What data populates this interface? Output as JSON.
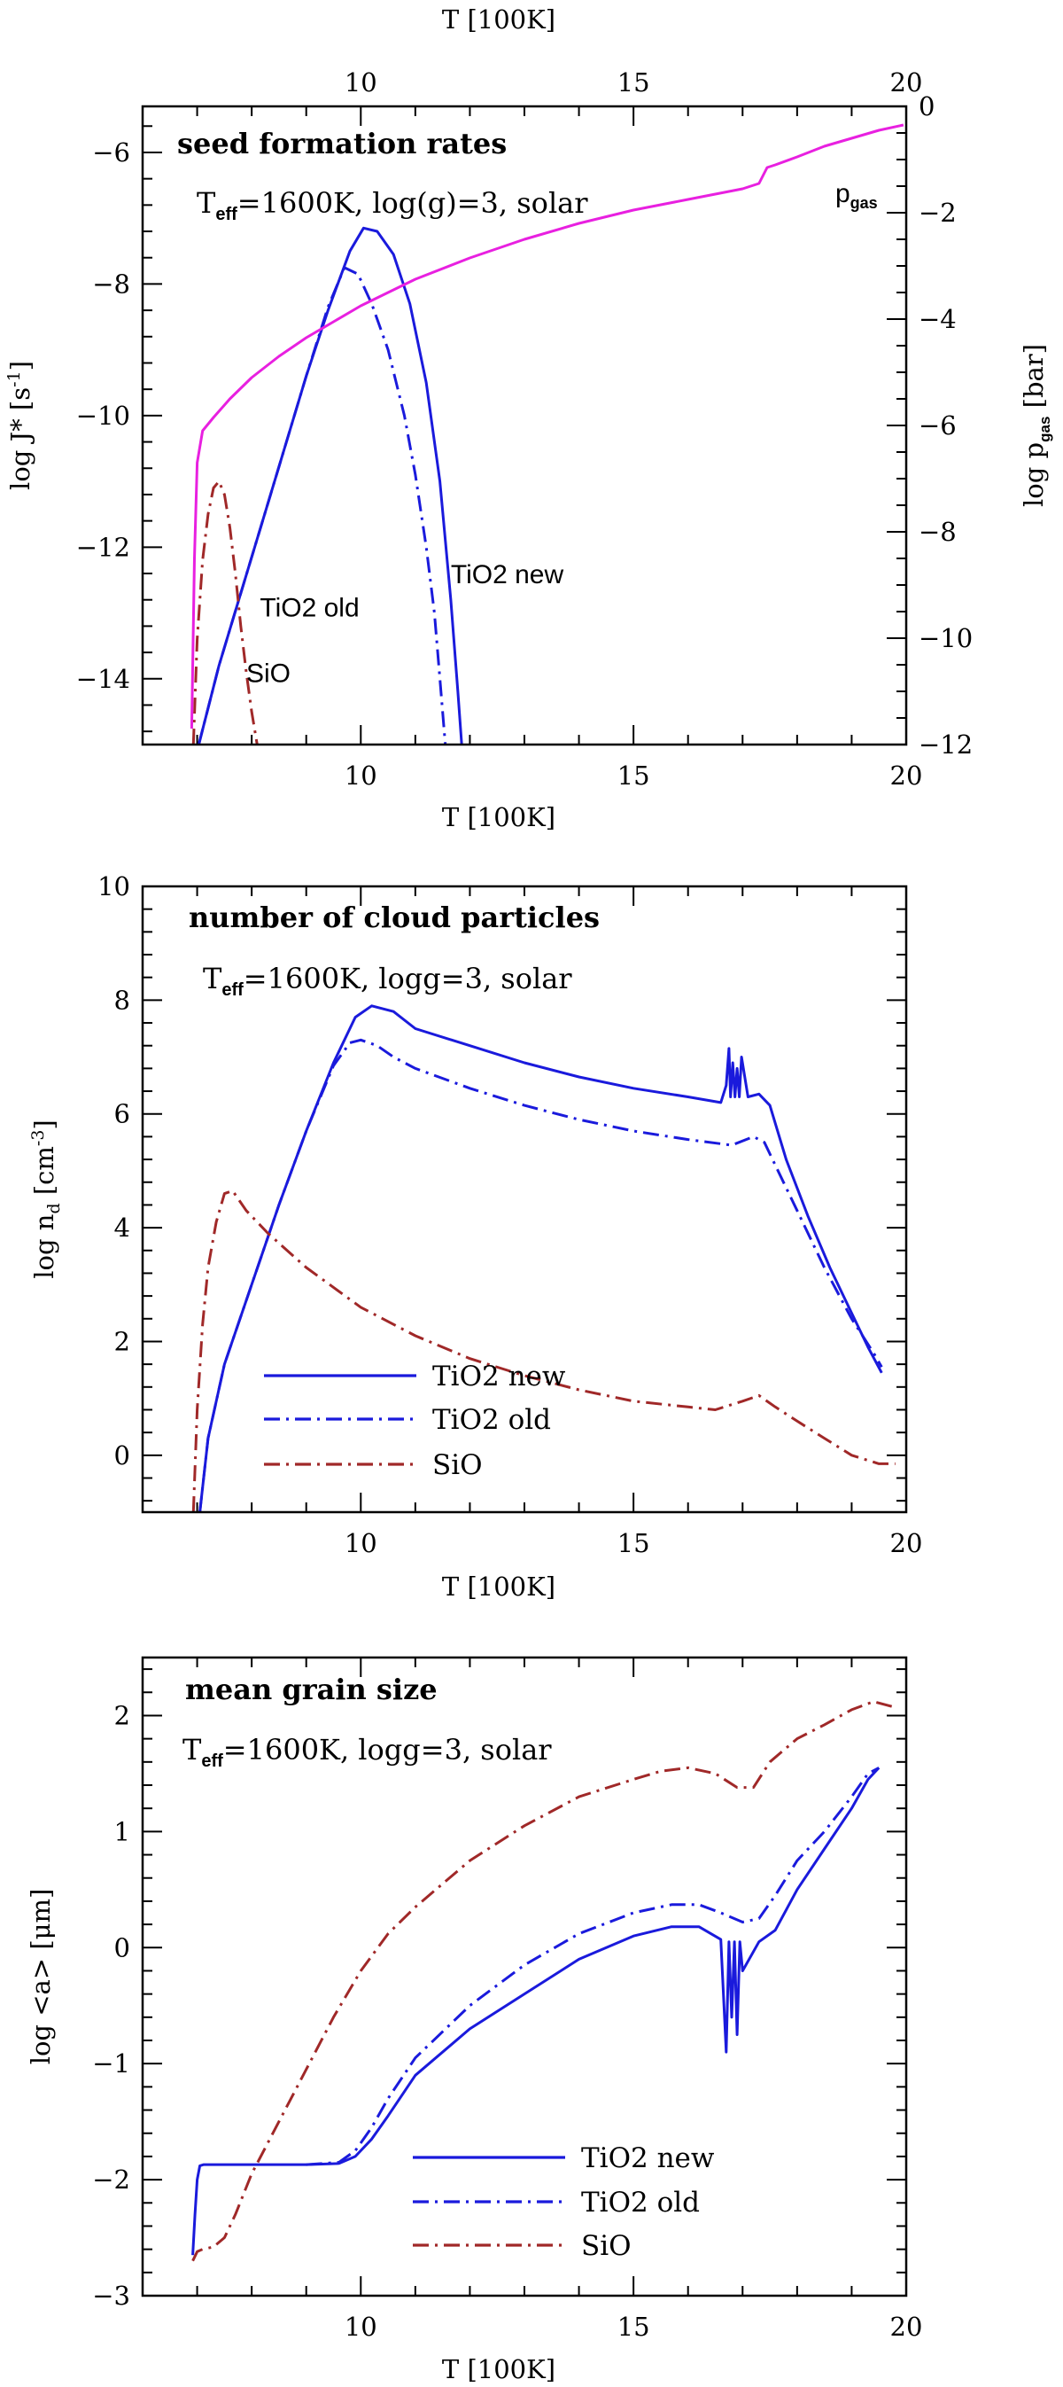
{
  "chart_data": [
    {
      "type": "line",
      "id": "seed",
      "title": "seed formation rates",
      "subtitle_main": "T",
      "subtitle_sub": "eff",
      "subtitle_rest": "=1600K, log(g)=3, solar",
      "xlabel": "T [100K]",
      "xlabel_top": "T [100K]",
      "ylabel_main": "log J* [s",
      "ylabel_sup": "-1",
      "ylabel_end": "]",
      "y2label_main": "log p",
      "y2label_sub": "gas",
      "y2label_end": " [bar]",
      "xlim": [
        6,
        20
      ],
      "ylim": [
        -15,
        -5.3
      ],
      "y2lim": [
        -12,
        0
      ],
      "xticks": [
        10,
        15,
        20
      ],
      "yticks": [
        -14,
        -12,
        -10,
        -8,
        -6
      ],
      "y2ticks": [
        -12,
        -10,
        -8,
        -6,
        -4,
        -2,
        0
      ],
      "series": [
        {
          "name": "TiO2 new",
          "color": "#1a1adc",
          "dash": "solid",
          "axis": "left",
          "x": [
            7.03,
            7.4,
            7.8,
            8.2,
            8.6,
            9.0,
            9.4,
            9.8,
            10.05,
            10.3,
            10.6,
            10.9,
            11.2,
            11.45,
            11.65,
            11.78,
            11.85
          ],
          "y": [
            -15,
            -13.8,
            -12.7,
            -11.6,
            -10.5,
            -9.4,
            -8.4,
            -7.5,
            -7.15,
            -7.2,
            -7.55,
            -8.3,
            -9.5,
            -11.0,
            -12.8,
            -14.2,
            -15
          ]
        },
        {
          "name": "TiO2 old",
          "color": "#1a1adc",
          "dash": "dashdot",
          "axis": "left",
          "x": [
            7.03,
            7.4,
            7.8,
            8.2,
            8.6,
            9.0,
            9.4,
            9.7,
            9.95,
            10.2,
            10.5,
            10.8,
            11.0,
            11.2,
            11.35,
            11.45,
            11.55
          ],
          "y": [
            -15,
            -13.8,
            -12.7,
            -11.6,
            -10.5,
            -9.4,
            -8.35,
            -7.75,
            -7.85,
            -8.3,
            -9.0,
            -10.0,
            -10.9,
            -12.0,
            -13.0,
            -14.0,
            -15
          ]
        },
        {
          "name": "SiO",
          "color": "#a02828",
          "dash": "dashdot",
          "axis": "left",
          "x": [
            6.93,
            7.0,
            7.1,
            7.2,
            7.3,
            7.4,
            7.5,
            7.6,
            7.7,
            7.8,
            7.9,
            8.0,
            8.1
          ],
          "y": [
            -15,
            -13.4,
            -12.2,
            -11.5,
            -11.1,
            -11.0,
            -11.2,
            -11.7,
            -12.4,
            -13.2,
            -13.9,
            -14.5,
            -15
          ]
        },
        {
          "name": "p_gas",
          "color": "#e820e0",
          "dash": "solid",
          "axis": "right",
          "x": [
            6.9,
            6.95,
            7.0,
            7.1,
            7.3,
            7.6,
            8.0,
            8.5,
            9.0,
            9.5,
            10.0,
            10.5,
            11.0,
            12.0,
            13.0,
            14.0,
            15.0,
            16.0,
            17.0,
            17.3,
            17.45,
            17.6,
            18.0,
            18.5,
            19.0,
            19.5,
            19.95
          ],
          "y": [
            -11.7,
            -8.5,
            -6.7,
            -6.1,
            -5.85,
            -5.5,
            -5.1,
            -4.7,
            -4.35,
            -4.05,
            -3.75,
            -3.5,
            -3.25,
            -2.85,
            -2.5,
            -2.2,
            -1.95,
            -1.75,
            -1.55,
            -1.45,
            -1.15,
            -1.1,
            -0.95,
            -0.75,
            -0.6,
            -0.45,
            -0.35
          ]
        }
      ],
      "annotations": [
        {
          "text": "TiO2 new",
          "x": 11.65,
          "y": -12.55
        },
        {
          "text": "TiO2 old",
          "x": 8.15,
          "y": -13.05
        },
        {
          "text": "SiO",
          "x": 7.9,
          "y": -14.05
        },
        {
          "text_main": "p",
          "text_sub": "gas",
          "x": 18.7,
          "y": -6.1
        }
      ]
    },
    {
      "type": "line",
      "id": "nd",
      "title": "number of cloud particles",
      "subtitle_main": "T",
      "subtitle_sub": "eff",
      "subtitle_rest": "=1600K, logg=3, solar",
      "xlabel": "T [100K]",
      "ylabel_main": "log n",
      "ylabel_sub": "d",
      "ylabel_mid": " [cm",
      "ylabel_sup": "-3",
      "ylabel_end": "]",
      "xlim": [
        6,
        20
      ],
      "ylim": [
        -1,
        10
      ],
      "xticks": [
        10,
        15,
        20
      ],
      "yticks": [
        0,
        2,
        4,
        6,
        8,
        10
      ],
      "legend": [
        "TiO2 new",
        "TiO2 old",
        "SiO"
      ],
      "series": [
        {
          "name": "TiO2 new",
          "color": "#1a1adc",
          "dash": "solid",
          "x": [
            7.05,
            7.2,
            7.5,
            8.0,
            8.5,
            9.0,
            9.5,
            9.9,
            10.2,
            10.6,
            11.0,
            12.0,
            13.0,
            14.0,
            15.0,
            16.0,
            16.6,
            16.7,
            16.75,
            16.78,
            16.82,
            16.86,
            16.9,
            16.94,
            16.98,
            17.1,
            17.3,
            17.5,
            17.8,
            18.2,
            18.6,
            19.0,
            19.3,
            19.55
          ],
          "y": [
            -1,
            0.3,
            1.6,
            3.0,
            4.4,
            5.7,
            6.9,
            7.7,
            7.9,
            7.8,
            7.5,
            7.2,
            6.9,
            6.65,
            6.45,
            6.3,
            6.2,
            6.5,
            7.15,
            6.3,
            6.9,
            6.3,
            6.8,
            6.3,
            7.0,
            6.3,
            6.35,
            6.15,
            5.2,
            4.2,
            3.3,
            2.5,
            1.9,
            1.45
          ]
        },
        {
          "name": "TiO2 old",
          "color": "#1a1adc",
          "dash": "dashdot",
          "x": [
            7.05,
            7.2,
            7.5,
            8.0,
            8.5,
            9.0,
            9.5,
            9.8,
            10.0,
            10.3,
            10.6,
            11.0,
            12.0,
            13.0,
            14.0,
            15.0,
            16.0,
            16.8,
            17.2,
            17.4,
            17.6,
            18.0,
            18.5,
            19.0,
            19.4,
            19.55
          ],
          "y": [
            -1,
            0.3,
            1.6,
            3.0,
            4.4,
            5.7,
            6.85,
            7.25,
            7.3,
            7.2,
            7.0,
            6.8,
            6.45,
            6.15,
            5.9,
            5.7,
            5.55,
            5.45,
            5.6,
            5.5,
            5.1,
            4.3,
            3.3,
            2.4,
            1.8,
            1.55
          ]
        },
        {
          "name": "SiO",
          "color": "#a02828",
          "dash": "dashdot",
          "x": [
            6.93,
            7.0,
            7.1,
            7.2,
            7.35,
            7.5,
            7.65,
            7.9,
            8.3,
            9.0,
            10.0,
            11.0,
            12.0,
            13.0,
            14.0,
            15.0,
            16.0,
            16.5,
            17.0,
            17.3,
            17.6,
            18.0,
            18.5,
            19.0,
            19.5,
            19.8
          ],
          "y": [
            -1,
            0.8,
            2.3,
            3.3,
            4.1,
            4.6,
            4.65,
            4.3,
            3.9,
            3.3,
            2.6,
            2.1,
            1.7,
            1.4,
            1.15,
            0.95,
            0.85,
            0.8,
            0.95,
            1.05,
            0.85,
            0.6,
            0.3,
            0.0,
            -0.15,
            -0.15
          ]
        }
      ]
    },
    {
      "type": "line",
      "id": "grain",
      "title": "mean grain size",
      "subtitle_main": "T",
      "subtitle_sub": "eff",
      "subtitle_rest": "=1600K, logg=3, solar",
      "xlabel": "T [100K]",
      "ylabel": "log <a> [μm]",
      "xlim": [
        6,
        20
      ],
      "ylim": [
        -3,
        2.5
      ],
      "xticks": [
        10,
        15,
        20
      ],
      "yticks": [
        -3,
        -2,
        -1,
        0,
        1,
        2
      ],
      "legend": [
        "TiO2 new",
        "TiO2 old",
        "SiO"
      ],
      "series": [
        {
          "name": "TiO2 new",
          "color": "#1a1adc",
          "dash": "solid",
          "x": [
            6.92,
            6.96,
            7.0,
            7.05,
            7.12,
            7.2,
            8.0,
            9.0,
            9.6,
            9.9,
            10.2,
            10.5,
            11.0,
            12.0,
            13.0,
            14.0,
            15.0,
            15.7,
            16.2,
            16.6,
            16.7,
            16.75,
            16.8,
            16.85,
            16.9,
            16.95,
            17.0,
            17.3,
            17.6,
            18.0,
            18.5,
            19.0,
            19.3,
            19.5
          ],
          "y": [
            -2.65,
            -2.3,
            -2.0,
            -1.88,
            -1.87,
            -1.87,
            -1.87,
            -1.87,
            -1.86,
            -1.8,
            -1.65,
            -1.45,
            -1.1,
            -0.7,
            -0.4,
            -0.1,
            0.1,
            0.18,
            0.18,
            0.07,
            -0.9,
            0.05,
            -0.6,
            0.05,
            -0.75,
            0.05,
            -0.2,
            0.05,
            0.15,
            0.5,
            0.85,
            1.2,
            1.45,
            1.55
          ]
        },
        {
          "name": "TiO2 old",
          "color": "#1a1adc",
          "dash": "dashdot",
          "x": [
            9.0,
            9.6,
            9.9,
            10.2,
            10.5,
            11.0,
            12.0,
            13.0,
            14.0,
            15.0,
            15.7,
            16.2,
            16.6,
            17.0,
            17.3,
            17.6,
            18.0,
            18.5,
            19.0,
            19.3,
            19.5
          ],
          "y": [
            -1.87,
            -1.85,
            -1.75,
            -1.55,
            -1.3,
            -0.95,
            -0.5,
            -0.15,
            0.12,
            0.3,
            0.37,
            0.37,
            0.3,
            0.22,
            0.25,
            0.45,
            0.75,
            1.0,
            1.3,
            1.5,
            1.55
          ]
        },
        {
          "name": "SiO",
          "color": "#a02828",
          "dash": "dashdot",
          "x": [
            6.92,
            7.0,
            7.1,
            7.3,
            7.5,
            7.7,
            8.0,
            8.5,
            9.0,
            9.5,
            10.0,
            10.5,
            11.0,
            12.0,
            13.0,
            14.0,
            15.0,
            15.5,
            16.0,
            16.5,
            16.9,
            17.2,
            17.5,
            18.0,
            18.5,
            19.0,
            19.4,
            19.8
          ],
          "y": [
            -2.7,
            -2.62,
            -2.6,
            -2.58,
            -2.5,
            -2.3,
            -1.95,
            -1.5,
            -1.05,
            -0.6,
            -0.2,
            0.12,
            0.35,
            0.75,
            1.05,
            1.3,
            1.45,
            1.52,
            1.55,
            1.5,
            1.38,
            1.38,
            1.6,
            1.8,
            1.92,
            2.05,
            2.12,
            2.07
          ]
        }
      ]
    }
  ]
}
